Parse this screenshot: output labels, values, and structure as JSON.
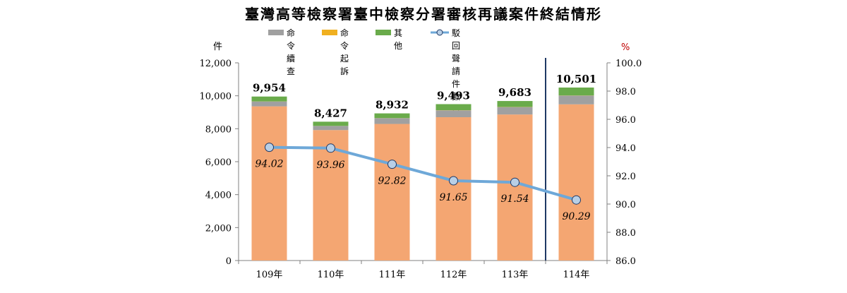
{
  "title": "臺灣高等檢察署臺中檢察分署審核再議案件終結情形",
  "left_unit": "件",
  "right_unit": "%",
  "legend": [
    {
      "label": "命令\n續查",
      "color": "#a0a0a0"
    },
    {
      "label": "命令\n起訴",
      "color": "#f0b020"
    },
    {
      "label": "其他",
      "color": "#6aab4b"
    },
    {
      "label": "駁回聲請件數占終結件數百分比",
      "color": "#6ea8d8"
    }
  ],
  "chart_data": {
    "type": "bar",
    "categories": [
      "109年",
      "110年",
      "111年",
      "112年",
      "113年",
      "114年"
    ],
    "stacked": true,
    "series": [
      {
        "name": "駁回",
        "values": [
          9359,
          7918,
          8291,
          8700,
          8864,
          9482
        ],
        "color": "#f4a672"
      },
      {
        "name": "命令續查",
        "values": [
          295,
          250,
          350,
          420,
          450,
          530
        ],
        "color": "#a0a0a0"
      },
      {
        "name": "命令起訴",
        "values": [
          5,
          4,
          6,
          8,
          9,
          9
        ],
        "color": "#f0b020"
      },
      {
        "name": "其他",
        "values": [
          295,
          255,
          285,
          365,
          360,
          480
        ],
        "color": "#6aab4b"
      }
    ],
    "totals": [
      "9,954",
      "8,427",
      "8,932",
      "9,493",
      "9,683",
      "10,501"
    ],
    "line": {
      "name": "駁回聲請件數占終結件數百分比",
      "values": [
        94.02,
        93.96,
        92.82,
        91.65,
        91.54,
        90.29
      ],
      "labels": [
        "94.02",
        "93.96",
        "92.82",
        "91.65",
        "91.54",
        "90.29"
      ],
      "color": "#6ea8d8",
      "marker_fill": "#b8cfe6"
    },
    "y_left": {
      "min": 0,
      "max": 12000,
      "ticks": [
        "0",
        "2,000",
        "4,000",
        "6,000",
        "8,000",
        "10,000",
        "12,000"
      ]
    },
    "y_right": {
      "min": 86,
      "max": 100,
      "ticks": [
        "86.0",
        "88.0",
        "90.0",
        "92.0",
        "94.0",
        "96.0",
        "98.0",
        "100.0"
      ]
    },
    "divider_after_index": 4,
    "divider_color": "#1f3864",
    "grid": false
  }
}
